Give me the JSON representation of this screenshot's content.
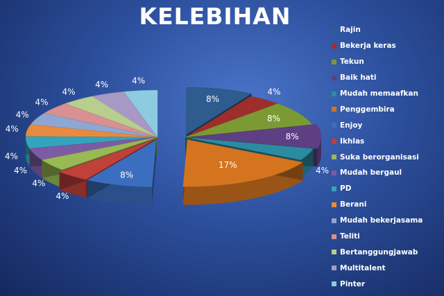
{
  "chart_data": {
    "type": "pie",
    "title": "KELEBIHAN",
    "data_label_format": "percent",
    "legend_position": "right",
    "categories": [
      "Rajin",
      "Bekerja keras",
      "Tekun",
      "Baik hati",
      "Mudah memaafkan",
      "Penggembira",
      "Enjoy",
      "Ikhlas",
      "Suka berorganisasi",
      "Mudah bergaul",
      "PD",
      "Berani",
      "Mudah bekerjasama",
      "Teliti",
      "Bertanggungjawab",
      "Multitalent",
      "Pinter"
    ],
    "values": [
      8,
      4,
      8,
      8,
      4,
      17,
      8,
      4,
      4,
      4,
      4,
      4,
      4,
      4,
      4,
      4,
      4
    ],
    "labels": [
      "8%",
      "4%",
      "8%",
      "8%",
      "4%",
      "17%",
      "8%",
      "4%",
      "4%",
      "4%",
      "4%",
      "4%",
      "4%",
      "4%",
      "4%",
      "4%",
      "4%"
    ],
    "colors": [
      "#2E5C8F",
      "#9E2E2B",
      "#7B9A34",
      "#5F3F84",
      "#2C8BA1",
      "#D4741F",
      "#3C6EBF",
      "#C0403A",
      "#99B954",
      "#7C5BA5",
      "#33A4BE",
      "#E98A3E",
      "#8FA6D2",
      "#D89090",
      "#B7CE8E",
      "#A898C6",
      "#8DCCE0"
    ],
    "exploded_slices": [
      "Rajin",
      "Baik hati",
      "Penggembira",
      "Enjoy",
      "Ikhlas"
    ],
    "style": "3d-exploded-pie"
  }
}
